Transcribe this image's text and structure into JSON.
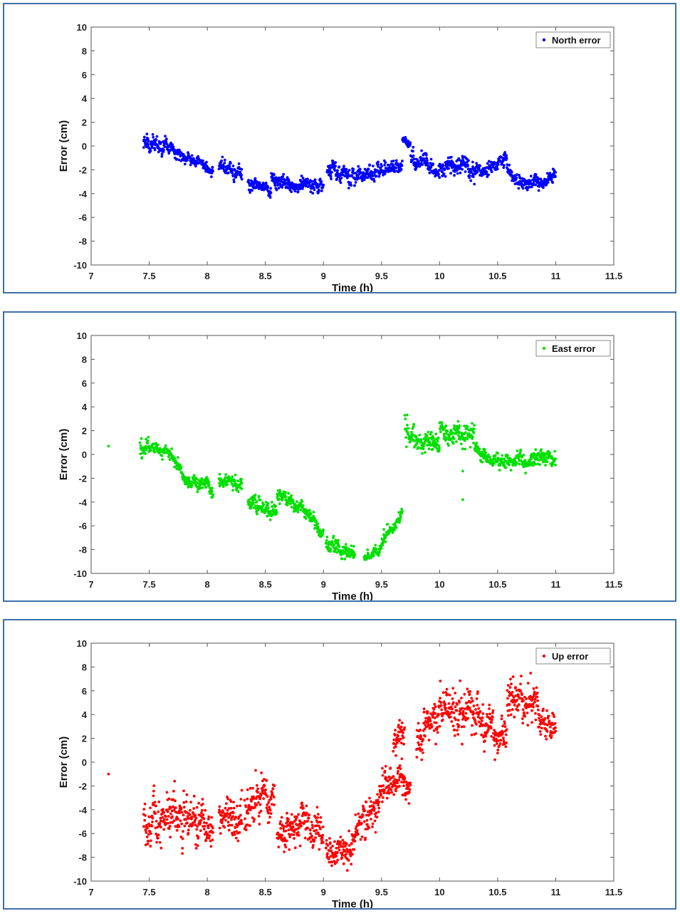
{
  "chart_data": [
    {
      "type": "scatter",
      "xlabel": "Time (h)",
      "ylabel": "Error (cm)",
      "xlim": [
        7,
        11.5
      ],
      "ylim": [
        -10,
        10
      ],
      "xticks": [
        "7",
        "7.5",
        "8",
        "8.5",
        "9",
        "9.5",
        "10",
        "10.5",
        "11",
        "11.5"
      ],
      "yticks": [
        "10",
        "8",
        "6",
        "4",
        "2",
        "0",
        "-2",
        "-4",
        "-6",
        "-8",
        "-10"
      ],
      "legend_position": "top-right",
      "grid": false,
      "series": [
        {
          "name": "North error",
          "color": "#0000ff",
          "segments": [
            {
              "x_start": 7.45,
              "x_end": 7.65,
              "mean_start": 0.3,
              "mean_end": 0.2,
              "spread": 0.6
            },
            {
              "x_start": 7.65,
              "x_end": 8.05,
              "mean_start": 0.0,
              "mean_end": -2.0,
              "spread": 0.35
            },
            {
              "x_start": 8.1,
              "x_end": 8.3,
              "mean_start": -1.6,
              "mean_end": -2.4,
              "spread": 0.45
            },
            {
              "x_start": 8.35,
              "x_end": 8.55,
              "mean_start": -3.0,
              "mean_end": -3.5,
              "spread": 0.4
            },
            {
              "x_start": 8.55,
              "x_end": 8.8,
              "mean_start": -2.8,
              "mean_end": -3.5,
              "spread": 0.5
            },
            {
              "x_start": 8.8,
              "x_end": 9.0,
              "mean_start": -3.0,
              "mean_end": -3.0,
              "spread": 0.5
            },
            {
              "x_start": 9.03,
              "x_end": 9.2,
              "mean_start": -1.8,
              "mean_end": -2.3,
              "spread": 0.55
            },
            {
              "x_start": 9.2,
              "x_end": 9.5,
              "mean_start": -2.5,
              "mean_end": -2.2,
              "spread": 0.55
            },
            {
              "x_start": 9.5,
              "x_end": 9.68,
              "mean_start": -2.0,
              "mean_end": -1.6,
              "spread": 0.45
            },
            {
              "x_start": 9.68,
              "x_end": 9.75,
              "mean_start": 0.5,
              "mean_end": 0.3,
              "spread": 0.3
            },
            {
              "x_start": 9.75,
              "x_end": 10.0,
              "mean_start": -1.0,
              "mean_end": -2.1,
              "spread": 0.5
            },
            {
              "x_start": 10.0,
              "x_end": 10.25,
              "mean_start": -2.0,
              "mean_end": -1.6,
              "spread": 0.5
            },
            {
              "x_start": 10.25,
              "x_end": 10.45,
              "mean_start": -2.2,
              "mean_end": -1.8,
              "spread": 0.5
            },
            {
              "x_start": 10.45,
              "x_end": 10.58,
              "mean_start": -1.5,
              "mean_end": -0.7,
              "spread": 0.4
            },
            {
              "x_start": 10.58,
              "x_end": 10.68,
              "mean_start": -1.8,
              "mean_end": -3.0,
              "spread": 0.4
            },
            {
              "x_start": 10.68,
              "x_end": 11.0,
              "mean_start": -3.1,
              "mean_end": -2.8,
              "spread": 0.4
            }
          ]
        }
      ]
    },
    {
      "type": "scatter",
      "xlabel": "Time (h)",
      "ylabel": "Error (cm)",
      "xlim": [
        7,
        11.5
      ],
      "ylim": [
        -10,
        10
      ],
      "xticks": [
        "7",
        "7.5",
        "8",
        "8.5",
        "9",
        "9.5",
        "10",
        "10.5",
        "11",
        "11.5"
      ],
      "yticks": [
        "10",
        "8",
        "6",
        "4",
        "2",
        "0",
        "-2",
        "-4",
        "-6",
        "-8",
        "-10"
      ],
      "legend_position": "top-right",
      "grid": false,
      "series": [
        {
          "name": "East error",
          "color": "#00e000",
          "outliers": [
            [
              7.15,
              0.7
            ],
            [
              10.2,
              -1.4
            ],
            [
              10.2,
              -3.8
            ]
          ],
          "segments": [
            {
              "x_start": 7.42,
              "x_end": 7.5,
              "mean_start": 0.6,
              "mean_end": 0.3,
              "spread": 0.7
            },
            {
              "x_start": 7.5,
              "x_end": 7.7,
              "mean_start": 0.6,
              "mean_end": 0.2,
              "spread": 0.35
            },
            {
              "x_start": 7.7,
              "x_end": 7.8,
              "mean_start": 0.0,
              "mean_end": -1.8,
              "spread": 0.4
            },
            {
              "x_start": 7.8,
              "x_end": 8.05,
              "mean_start": -2.2,
              "mean_end": -2.6,
              "spread": 0.45
            },
            {
              "x_start": 8.1,
              "x_end": 8.3,
              "mean_start": -2.1,
              "mean_end": -2.6,
              "spread": 0.4
            },
            {
              "x_start": 8.35,
              "x_end": 8.6,
              "mean_start": -4.0,
              "mean_end": -4.8,
              "spread": 0.5
            },
            {
              "x_start": 8.6,
              "x_end": 8.85,
              "mean_start": -3.5,
              "mean_end": -4.7,
              "spread": 0.4
            },
            {
              "x_start": 8.85,
              "x_end": 9.0,
              "mean_start": -5.0,
              "mean_end": -6.6,
              "spread": 0.4
            },
            {
              "x_start": 9.02,
              "x_end": 9.27,
              "mean_start": -7.8,
              "mean_end": -8.2,
              "spread": 0.5
            },
            {
              "x_start": 9.35,
              "x_end": 9.5,
              "mean_start": -8.7,
              "mean_end": -8.0,
              "spread": 0.3
            },
            {
              "x_start": 9.5,
              "x_end": 9.68,
              "mean_start": -7.5,
              "mean_end": -5.0,
              "spread": 0.5
            },
            {
              "x_start": 9.7,
              "x_end": 9.78,
              "mean_start": 2.6,
              "mean_end": 1.6,
              "spread": 0.8
            },
            {
              "x_start": 9.78,
              "x_end": 10.0,
              "mean_start": 1.2,
              "mean_end": 1.0,
              "spread": 0.6
            },
            {
              "x_start": 10.0,
              "x_end": 10.3,
              "mean_start": 2.2,
              "mean_end": 1.6,
              "spread": 0.7
            },
            {
              "x_start": 10.3,
              "x_end": 10.6,
              "mean_start": 0.0,
              "mean_end": -0.9,
              "spread": 0.55
            },
            {
              "x_start": 10.6,
              "x_end": 11.0,
              "mean_start": -0.6,
              "mean_end": -0.2,
              "spread": 0.5
            }
          ]
        }
      ]
    },
    {
      "type": "scatter",
      "xlabel": "Time (h)",
      "ylabel": "Error (cm)",
      "xlim": [
        7,
        11.5
      ],
      "ylim": [
        -10,
        10
      ],
      "xticks": [
        "7",
        "7.5",
        "8",
        "8.5",
        "9",
        "9.5",
        "10",
        "10.5",
        "11",
        "11.5"
      ],
      "yticks": [
        "10",
        "8",
        "6",
        "4",
        "2",
        "0",
        "-2",
        "-4",
        "-6",
        "-8",
        "-10"
      ],
      "legend_position": "top-right",
      "grid": false,
      "series": [
        {
          "name": "Up error",
          "color": "#ff0000",
          "outliers": [
            [
              7.15,
              -1.0
            ]
          ],
          "segments": [
            {
              "x_start": 7.45,
              "x_end": 8.05,
              "mean_start": -4.8,
              "mean_end": -4.8,
              "spread": 1.5
            },
            {
              "x_start": 8.1,
              "x_end": 8.3,
              "mean_start": -4.5,
              "mean_end": -5.0,
              "spread": 1.3
            },
            {
              "x_start": 8.32,
              "x_end": 8.58,
              "mean_start": -4.5,
              "mean_end": -3.0,
              "spread": 1.3
            },
            {
              "x_start": 8.6,
              "x_end": 8.8,
              "mean_start": -6.0,
              "mean_end": -5.5,
              "spread": 1.1
            },
            {
              "x_start": 8.8,
              "x_end": 9.0,
              "mean_start": -4.5,
              "mean_end": -5.8,
              "spread": 1.2
            },
            {
              "x_start": 9.02,
              "x_end": 9.25,
              "mean_start": -8.0,
              "mean_end": -7.0,
              "spread": 1.0
            },
            {
              "x_start": 9.25,
              "x_end": 9.5,
              "mean_start": -6.5,
              "mean_end": -3.0,
              "spread": 1.2
            },
            {
              "x_start": 9.5,
              "x_end": 9.75,
              "mean_start": -2.0,
              "mean_end": -1.5,
              "spread": 1.0
            },
            {
              "x_start": 9.6,
              "x_end": 9.7,
              "mean_start": 1.5,
              "mean_end": 2.5,
              "spread": 0.8
            },
            {
              "x_start": 9.8,
              "x_end": 10.0,
              "mean_start": 1.5,
              "mean_end": 4.0,
              "spread": 1.3
            },
            {
              "x_start": 10.0,
              "x_end": 10.3,
              "mean_start": 4.8,
              "mean_end": 4.0,
              "spread": 1.4
            },
            {
              "x_start": 10.3,
              "x_end": 10.58,
              "mean_start": 3.6,
              "mean_end": 2.5,
              "spread": 1.2
            },
            {
              "x_start": 10.58,
              "x_end": 10.85,
              "mean_start": 5.5,
              "mean_end": 5.0,
              "spread": 1.3
            },
            {
              "x_start": 10.85,
              "x_end": 11.0,
              "mean_start": 4.0,
              "mean_end": 3.0,
              "spread": 1.0
            }
          ]
        }
      ]
    }
  ]
}
